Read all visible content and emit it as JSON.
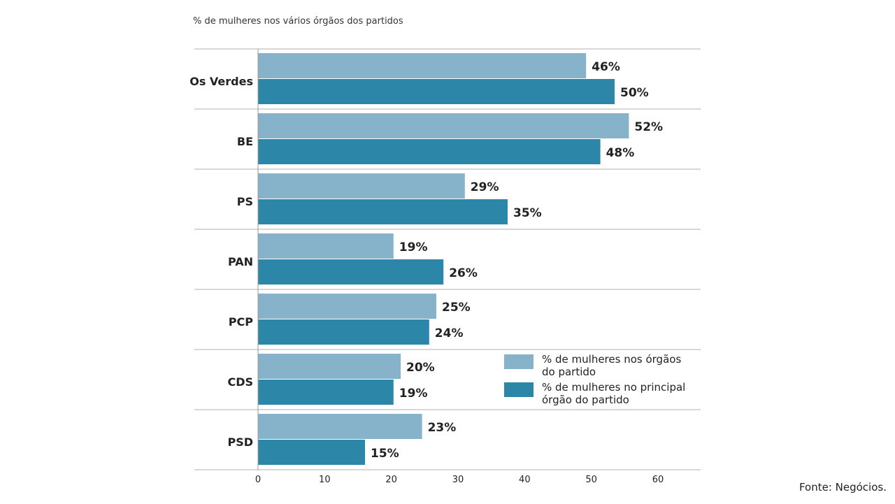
{
  "chart_data": {
    "type": "bar",
    "orientation": "horizontal",
    "title": "% de mulheres nos vários órgãos dos partidos",
    "categories": [
      "Os Verdes",
      "BE",
      "PS",
      "PAN",
      "PCP",
      "CDS",
      "PSD"
    ],
    "series": [
      {
        "name": "% de mulheres nos órgãos do partido",
        "name_lines": [
          "% de mulheres nos órgãos",
          "do partido"
        ],
        "color": "#86b3ca",
        "values": [
          46,
          52,
          29,
          19,
          25,
          20,
          23
        ]
      },
      {
        "name": "% de mulheres no principal órgão do partido",
        "name_lines": [
          "% de mulheres no principal",
          "órgão do partido"
        ],
        "color": "#2b86a7",
        "values": [
          50,
          48,
          35,
          26,
          24,
          19,
          15
        ]
      }
    ],
    "value_suffix": "%",
    "xlim": [
      0,
      60
    ],
    "xticks": [
      0,
      10,
      20,
      30,
      40,
      50,
      60
    ],
    "grid": "horizontal separators between categories",
    "legend": "bottom-right"
  },
  "source": "Fonte: Negócios."
}
